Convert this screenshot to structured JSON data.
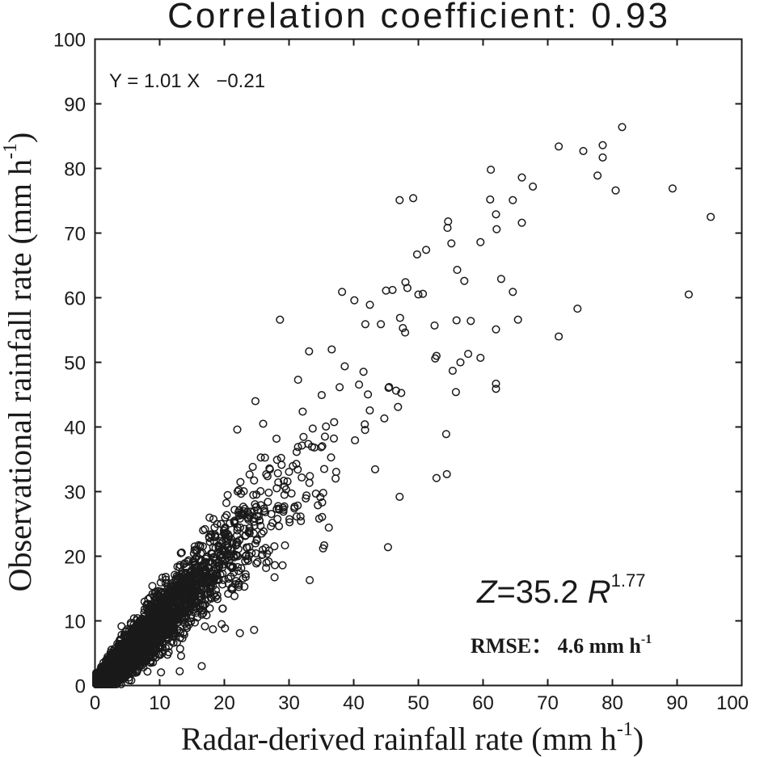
{
  "chart_data": {
    "type": "scatter",
    "title": "Correlation coefficient: 0.93",
    "xlabel": "Radar-derived rainfall rate (mm h",
    "xlabel_sup": "-1",
    "xlabel_end": ")",
    "ylabel": "Observational rainfall rate (mm h",
    "ylabel_sup": "-1",
    "ylabel_end": ")",
    "xlim": [
      0,
      100
    ],
    "ylim": [
      0,
      100
    ],
    "xticks": [
      "0",
      "10",
      "20",
      "30",
      "40",
      "50",
      "60",
      "70",
      "80",
      "90",
      "100"
    ],
    "yticks": [
      "0",
      "10",
      "20",
      "30",
      "40",
      "50",
      "60",
      "70",
      "80",
      "90",
      "100"
    ],
    "grid": false,
    "marker": "open-circle",
    "regression_text": "Y = 1.01 X   −0.21",
    "zr_relation": {
      "z_prefix": "Z",
      "eq": "=35.2 ",
      "r": "R",
      "exponent": "1.77"
    },
    "rmse_label": "RMSE： 4.6 mm h",
    "rmse_sup": "-1",
    "outliers": [
      {
        "x": 81.5,
        "y": 86.4
      },
      {
        "x": 71.7,
        "y": 83.4
      },
      {
        "x": 75.5,
        "y": 82.7
      },
      {
        "x": 78.5,
        "y": 83.6
      },
      {
        "x": 78.5,
        "y": 81.7
      },
      {
        "x": 61.2,
        "y": 79.8
      },
      {
        "x": 66.0,
        "y": 78.6
      },
      {
        "x": 77.7,
        "y": 78.9
      },
      {
        "x": 67.7,
        "y": 77.2
      },
      {
        "x": 80.5,
        "y": 76.6
      },
      {
        "x": 89.3,
        "y": 76.9
      },
      {
        "x": 47.1,
        "y": 75.1
      },
      {
        "x": 49.2,
        "y": 75.4
      },
      {
        "x": 61.1,
        "y": 75.2
      },
      {
        "x": 64.6,
        "y": 75.1
      },
      {
        "x": 62.0,
        "y": 72.9
      },
      {
        "x": 95.2,
        "y": 72.5
      },
      {
        "x": 54.6,
        "y": 71.8
      },
      {
        "x": 66.0,
        "y": 71.6
      },
      {
        "x": 54.5,
        "y": 70.8
      },
      {
        "x": 62.1,
        "y": 70.6
      },
      {
        "x": 55.1,
        "y": 68.4
      },
      {
        "x": 59.6,
        "y": 68.6
      },
      {
        "x": 51.2,
        "y": 67.4
      },
      {
        "x": 49.8,
        "y": 66.7
      },
      {
        "x": 56.0,
        "y": 64.3
      },
      {
        "x": 62.8,
        "y": 62.9
      },
      {
        "x": 57.1,
        "y": 62.6
      },
      {
        "x": 48.0,
        "y": 62.4
      },
      {
        "x": 64.6,
        "y": 60.9
      },
      {
        "x": 91.8,
        "y": 60.5
      },
      {
        "x": 74.6,
        "y": 58.3
      },
      {
        "x": 71.7,
        "y": 54.0
      },
      {
        "x": 65.4,
        "y": 56.6
      },
      {
        "x": 62.0,
        "y": 55.1
      },
      {
        "x": 58.1,
        "y": 56.4
      },
      {
        "x": 55.9,
        "y": 56.5
      },
      {
        "x": 52.5,
        "y": 55.7
      },
      {
        "x": 57.7,
        "y": 51.3
      },
      {
        "x": 59.6,
        "y": 50.7
      },
      {
        "x": 56.5,
        "y": 50.0
      },
      {
        "x": 55.3,
        "y": 48.7
      },
      {
        "x": 62.0,
        "y": 46.7
      },
      {
        "x": 62.0,
        "y": 45.9
      },
      {
        "x": 55.8,
        "y": 45.4
      },
      {
        "x": 54.3,
        "y": 38.9
      },
      {
        "x": 54.4,
        "y": 32.7
      },
      {
        "x": 52.8,
        "y": 32.1
      },
      {
        "x": 45.3,
        "y": 21.4
      },
      {
        "x": 47.1,
        "y": 29.2
      },
      {
        "x": 28.6,
        "y": 56.6
      },
      {
        "x": 38.2,
        "y": 60.9
      },
      {
        "x": 40.1,
        "y": 59.6
      },
      {
        "x": 46.0,
        "y": 61.2
      },
      {
        "x": 52.8,
        "y": 51.0
      },
      {
        "x": 52.6,
        "y": 50.6
      },
      {
        "x": 50.7,
        "y": 60.6
      },
      {
        "x": 48.3,
        "y": 61.5
      },
      {
        "x": 50.0,
        "y": 60.5
      },
      {
        "x": 42.5,
        "y": 58.9
      },
      {
        "x": 45.0,
        "y": 61.1
      },
      {
        "x": 41.8,
        "y": 55.9
      },
      {
        "x": 44.2,
        "y": 55.9
      },
      {
        "x": 47.6,
        "y": 55.3
      },
      {
        "x": 36.6,
        "y": 52.0
      },
      {
        "x": 33.1,
        "y": 51.7
      },
      {
        "x": 24.8,
        "y": 44.0
      },
      {
        "x": 26.0,
        "y": 40.5
      },
      {
        "x": 31.4,
        "y": 47.3
      },
      {
        "x": 22.0,
        "y": 39.6
      },
      {
        "x": 33.2,
        "y": 16.3
      },
      {
        "x": 29.0,
        "y": 18.6
      },
      {
        "x": 24.6,
        "y": 8.6
      },
      {
        "x": 22.4,
        "y": 8.1
      },
      {
        "x": 16.5,
        "y": 3.0
      },
      {
        "x": 13.1,
        "y": 2.2
      }
    ],
    "cluster": {
      "n": 3800,
      "x_distribution": "exponential",
      "x_mean": 7.5,
      "x_max": 48,
      "slope": 1.01,
      "intercept": -0.21,
      "spread_sd_base": 0.8,
      "spread_sd_per_unit": 0.19
    }
  }
}
